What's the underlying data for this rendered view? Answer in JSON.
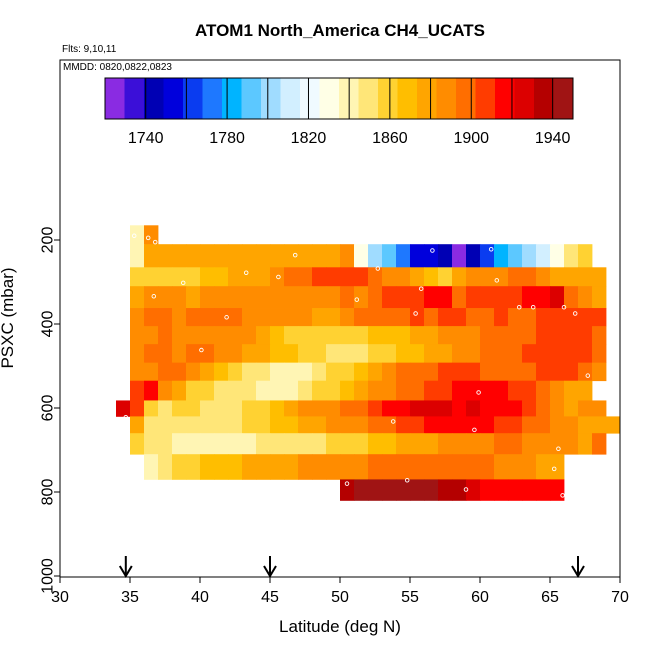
{
  "chart_data": {
    "type": "heatmap",
    "title": "ATOM1 North_America CH4_UCATS",
    "annotations": [
      "Flts: 9,10,11",
      "MMDD: 0820,0822,0823"
    ],
    "xlabel": "Latitude (deg N)",
    "ylabel": "PSXC (mbar)",
    "xlim": [
      30,
      70
    ],
    "ylim": [
      1000,
      0
    ],
    "xticks": [
      30,
      35,
      40,
      45,
      50,
      55,
      60,
      65,
      70
    ],
    "yticks": [
      200,
      400,
      600,
      800,
      1000
    ],
    "colorbar": {
      "range": [
        1720,
        1950
      ],
      "ticks": [
        1740,
        1780,
        1820,
        1860,
        1900,
        1940
      ],
      "colors": [
        "#8a2be2",
        "#3b0fd8",
        "#0000b4",
        "#0000dc",
        "#0a3cf0",
        "#1e78ff",
        "#00b4ff",
        "#5cc8ff",
        "#a0dcff",
        "#d2efff",
        "#f0faff",
        "#ffffe6",
        "#fff5b4",
        "#ffe678",
        "#ffd232",
        "#ffbe00",
        "#ffa500",
        "#ff8c00",
        "#ff6e00",
        "#ff3c00",
        "#ff0000",
        "#dc0000",
        "#b40000",
        "#a01414"
      ]
    },
    "flight_markers": [
      34.7,
      45,
      67
    ],
    "rows": [
      {
        "p": [
          165,
          210
        ],
        "lat0": 35,
        "values": [
          1838,
          1885
        ]
      },
      {
        "p": [
          210,
          265
        ],
        "lat0": 35,
        "values": [
          1840,
          1878,
          1876,
          1878,
          1876,
          1878,
          1880,
          1878,
          1877,
          1876,
          1874,
          1878,
          1876,
          1878,
          1876,
          1885,
          1828,
          1805,
          1790,
          1770,
          1755,
          1750,
          1740,
          1725,
          1740,
          1760,
          1780,
          1790,
          1800,
          1815,
          1830,
          1845,
          1855
        ]
      },
      {
        "p": [
          265,
          310
        ],
        "lat0": 35,
        "values": [
          1858,
          1860,
          1858,
          1862,
          1863,
          1865,
          1870,
          1874,
          1878,
          1882,
          1890,
          1900,
          1895,
          1905,
          1910,
          1908,
          1905,
          1900,
          1890,
          1885,
          1875,
          1870,
          1860,
          1880,
          1888,
          1890,
          1892,
          1898,
          1900,
          1885,
          1880,
          1876,
          1877,
          1874
        ]
      },
      {
        "p": [
          310,
          362
        ],
        "lat0": 35,
        "values": [
          1880,
          1885,
          1884,
          1886,
          1882,
          1885,
          1888,
          1884,
          1886,
          1884,
          1887,
          1885,
          1890,
          1888,
          1892,
          1895,
          1892,
          1898,
          1903,
          1905,
          1910,
          1912,
          1920,
          1898,
          1905,
          1910,
          1904,
          1906,
          1915,
          1920,
          1925,
          1900,
          1888,
          1880
        ]
      },
      {
        "p": [
          362,
          405
        ],
        "lat0": 35,
        "values": [
          1890,
          1895,
          1894,
          1892,
          1893,
          1894,
          1894,
          1893,
          1892,
          1891,
          1890,
          1889,
          1885,
          1880,
          1882,
          1890,
          1894,
          1896,
          1899,
          1900,
          1903,
          1902,
          1904,
          1905,
          1902,
          1900,
          1905,
          1900,
          1902,
          1906,
          1906,
          1905,
          1906,
          1904
        ]
      },
      {
        "p": [
          405,
          448
        ],
        "lat0": 35,
        "values": [
          1890,
          1892,
          1893,
          1890,
          1892,
          1891,
          1890,
          1888,
          1885,
          1878,
          1868,
          1860,
          1860,
          1858,
          1860,
          1862,
          1863,
          1865,
          1868,
          1872,
          1876,
          1880,
          1884,
          1890,
          1892,
          1895,
          1898,
          1900,
          1902,
          1904,
          1906,
          1905,
          1904,
          1902
        ]
      },
      {
        "p": [
          448,
          492
        ],
        "lat0": 35,
        "values": [
          1890,
          1893,
          1895,
          1892,
          1893,
          1894,
          1892,
          1890,
          1882,
          1876,
          1870,
          1868,
          1860,
          1855,
          1850,
          1848,
          1850,
          1855,
          1860,
          1865,
          1870,
          1875,
          1880,
          1886,
          1892,
          1896,
          1900,
          1902,
          1904,
          1906,
          1906,
          1905,
          1904,
          1900
        ]
      },
      {
        "p": [
          492,
          535
        ],
        "lat0": 35,
        "values": [
          1890,
          1892,
          1894,
          1893,
          1885,
          1878,
          1868,
          1862,
          1852,
          1848,
          1842,
          1840,
          1842,
          1848,
          1855,
          1862,
          1870,
          1880,
          1888,
          1893,
          1896,
          1900,
          1904,
          1906,
          1906,
          1902,
          1898,
          1900,
          1902,
          1904,
          1905,
          1906,
          1900,
          1885
        ]
      },
      {
        "p": [
          535,
          582
        ],
        "lat0": 35,
        "values": [
          1910,
          1912,
          1885,
          1880,
          1862,
          1858,
          1852,
          1848,
          1845,
          1842,
          1840,
          1842,
          1848,
          1855,
          1862,
          1870,
          1878,
          1885,
          1890,
          1895,
          1900,
          1905,
          1910,
          1912,
          1915,
          1915,
          1912,
          1910,
          1905,
          1900,
          1890,
          1880,
          1875
        ]
      },
      {
        "p": [
          582,
          620
        ],
        "lat0": 34,
        "values": [
          1925,
          1910,
          1862,
          1850,
          1855,
          1858,
          1852,
          1850,
          1852,
          1855,
          1862,
          1872,
          1880,
          1885,
          1888,
          1892,
          1896,
          1900,
          1905,
          1912,
          1918,
          1922,
          1925,
          1925,
          1920,
          1922,
          1920,
          1918,
          1912,
          1906,
          1900,
          1890,
          1880,
          1885,
          1890
        ]
      },
      {
        "p": [
          620,
          660
        ],
        "lat0": 35,
        "values": [
          1880,
          1846,
          1850,
          1848,
          1846,
          1845,
          1848,
          1852,
          1856,
          1860,
          1866,
          1870,
          1875,
          1880,
          1885,
          1888,
          1890,
          1895,
          1900,
          1905,
          1910,
          1915,
          1918,
          1920,
          1918,
          1915,
          1910,
          1905,
          1900,
          1895,
          1890,
          1885,
          1878,
          1875,
          1880
        ]
      },
      {
        "p": [
          660,
          710
        ],
        "lat0": 35,
        "values": [
          1860,
          1850,
          1845,
          1844,
          1843,
          1842,
          1842,
          1843,
          1844,
          1845,
          1846,
          1848,
          1850,
          1852,
          1855,
          1858,
          1862,
          1866,
          1870,
          1874,
          1878,
          1882,
          1885,
          1888,
          1890,
          1892,
          1895,
          1894,
          1890,
          1888,
          1886,
          1885,
          1880,
          1900
        ]
      },
      {
        "p": [
          710,
          770
        ],
        "lat0": 36,
        "values": [
          1842,
          1850,
          1855,
          1860,
          1865,
          1868,
          1872,
          1875,
          1878,
          1880,
          1882,
          1884,
          1886,
          1888,
          1890,
          1892,
          1894,
          1895,
          1896,
          1897,
          1898,
          1898,
          1898,
          1896,
          1894,
          1892,
          1890,
          1886,
          1882,
          1880
        ]
      },
      {
        "p": [
          770,
          820
        ],
        "lat0": 50,
        "values": [
          1940,
          1942,
          1944,
          1945,
          1946,
          1944,
          1942,
          1940,
          1935,
          1925,
          1918,
          1920,
          1915,
          1918,
          1920,
          1912
        ]
      }
    ],
    "points": [
      {
        "lat": 35.3,
        "p": 190
      },
      {
        "lat": 36.3,
        "p": 195
      },
      {
        "lat": 36.8,
        "p": 205
      },
      {
        "lat": 46.8,
        "p": 236
      },
      {
        "lat": 56.6,
        "p": 225
      },
      {
        "lat": 60.8,
        "p": 222
      },
      {
        "lat": 38.8,
        "p": 302
      },
      {
        "lat": 43.3,
        "p": 278
      },
      {
        "lat": 45.6,
        "p": 288
      },
      {
        "lat": 52.7,
        "p": 268
      },
      {
        "lat": 55.8,
        "p": 316
      },
      {
        "lat": 61.2,
        "p": 296
      },
      {
        "lat": 36.7,
        "p": 334
      },
      {
        "lat": 51.2,
        "p": 342
      },
      {
        "lat": 62.8,
        "p": 360
      },
      {
        "lat": 63.8,
        "p": 360
      },
      {
        "lat": 66.0,
        "p": 360
      },
      {
        "lat": 41.9,
        "p": 384
      },
      {
        "lat": 55.4,
        "p": 375
      },
      {
        "lat": 40.1,
        "p": 462
      },
      {
        "lat": 66.8,
        "p": 375
      },
      {
        "lat": 67.7,
        "p": 523
      },
      {
        "lat": 59.9,
        "p": 563
      },
      {
        "lat": 34.7,
        "p": 622
      },
      {
        "lat": 53.8,
        "p": 632
      },
      {
        "lat": 59.6,
        "p": 652
      },
      {
        "lat": 65.6,
        "p": 697
      },
      {
        "lat": 65.3,
        "p": 745
      },
      {
        "lat": 50.5,
        "p": 780
      },
      {
        "lat": 54.8,
        "p": 772
      },
      {
        "lat": 59.0,
        "p": 794
      },
      {
        "lat": 65.9,
        "p": 808
      }
    ]
  }
}
